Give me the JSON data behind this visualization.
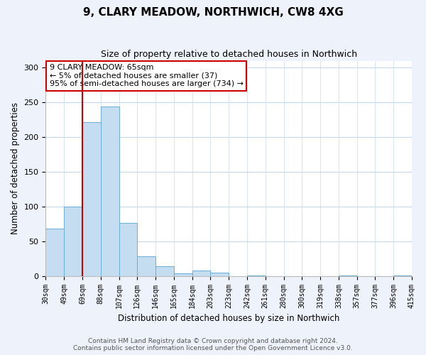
{
  "title": "9, CLARY MEADOW, NORTHWICH, CW8 4XG",
  "subtitle": "Size of property relative to detached houses in Northwich",
  "xlabel": "Distribution of detached houses by size in Northwich",
  "ylabel": "Number of detached properties",
  "bin_labels": [
    "30sqm",
    "49sqm",
    "69sqm",
    "88sqm",
    "107sqm",
    "126sqm",
    "146sqm",
    "165sqm",
    "184sqm",
    "203sqm",
    "223sqm",
    "242sqm",
    "261sqm",
    "280sqm",
    "300sqm",
    "319sqm",
    "338sqm",
    "357sqm",
    "377sqm",
    "396sqm",
    "415sqm"
  ],
  "bar_values": [
    68,
    100,
    222,
    244,
    76,
    28,
    14,
    4,
    8,
    5,
    0,
    1,
    0,
    0,
    0,
    0,
    1,
    0,
    0,
    1
  ],
  "bar_color": "#c5ddf0",
  "bar_edge_color": "#6baed6",
  "property_line_x": 2.0,
  "property_line_color": "#cc0000",
  "ylim": [
    0,
    310
  ],
  "yticks": [
    0,
    50,
    100,
    150,
    200,
    250,
    300
  ],
  "annotation_title": "9 CLARY MEADOW: 65sqm",
  "annotation_line1": "← 5% of detached houses are smaller (37)",
  "annotation_line2": "95% of semi-detached houses are larger (734) →",
  "annotation_box_color": "#ffffff",
  "annotation_box_edge_color": "#cc0000",
  "footer_line1": "Contains HM Land Registry data © Crown copyright and database right 2024.",
  "footer_line2": "Contains public sector information licensed under the Open Government Licence v3.0.",
  "background_color": "#eef2fa",
  "plot_background_color": "#ffffff",
  "grid_color": "#c8d8ee",
  "title_fontsize": 11,
  "subtitle_fontsize": 9
}
